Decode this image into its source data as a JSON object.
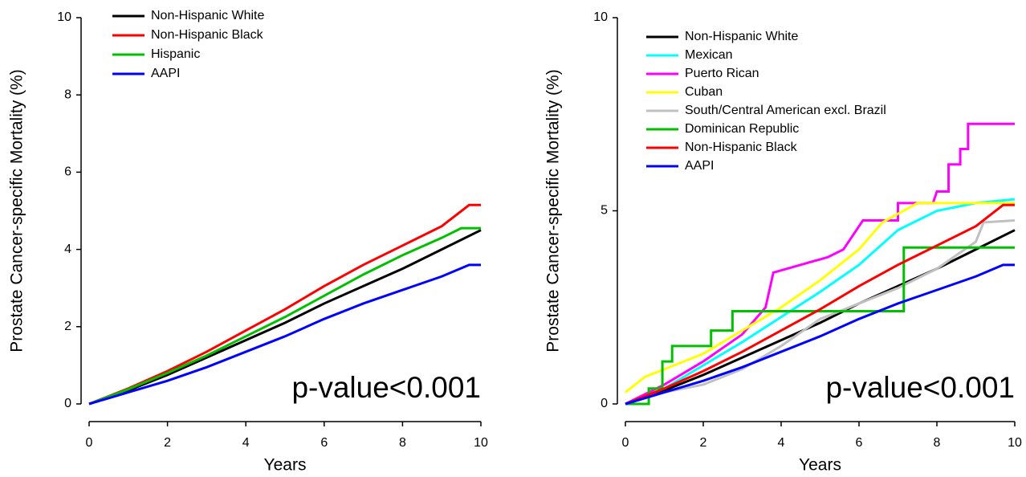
{
  "chart_data": [
    {
      "type": "line",
      "x_label": "Years",
      "y_label": "Prostate Cancer-specific Mortality (%)",
      "annotation": "p-value<0.001",
      "xlim": [
        0,
        10
      ],
      "ylim": [
        0,
        10
      ],
      "xticks": [
        0,
        2,
        4,
        6,
        8,
        10
      ],
      "yticks": [
        0,
        2,
        4,
        6,
        8,
        10
      ],
      "legend": "top-left",
      "series": [
        {
          "name": "Non-Hispanic White",
          "color": "#000000",
          "x": [
            0,
            1,
            2,
            3,
            4,
            5,
            6,
            7,
            8,
            9,
            10
          ],
          "values": [
            0,
            0.35,
            0.75,
            1.2,
            1.65,
            2.1,
            2.6,
            3.05,
            3.5,
            4.0,
            4.5
          ]
        },
        {
          "name": "Non-Hispanic Black",
          "color": "#ff0000",
          "x": [
            0,
            1,
            2,
            3,
            4,
            5,
            6,
            7,
            8,
            9,
            9.7,
            10
          ],
          "values": [
            0,
            0.4,
            0.85,
            1.35,
            1.9,
            2.45,
            3.05,
            3.6,
            4.1,
            4.6,
            5.15,
            5.15
          ]
        },
        {
          "name": "Hispanic",
          "color": "#00c000",
          "x": [
            0,
            1,
            2,
            3,
            4,
            5,
            6,
            7,
            8,
            9,
            9.5,
            10
          ],
          "values": [
            0,
            0.38,
            0.8,
            1.25,
            1.75,
            2.25,
            2.8,
            3.35,
            3.85,
            4.3,
            4.55,
            4.55
          ]
        },
        {
          "name": "AAPI",
          "color": "#0000ff",
          "x": [
            0,
            1,
            2,
            3,
            4,
            5,
            6,
            7,
            8,
            9,
            9.7,
            10
          ],
          "values": [
            0,
            0.3,
            0.6,
            0.95,
            1.35,
            1.75,
            2.2,
            2.6,
            2.95,
            3.3,
            3.6,
            3.6
          ]
        }
      ]
    },
    {
      "type": "line",
      "x_label": "Years",
      "y_label": "Prostate Cancer-specific Mortality (%)",
      "annotation": "p-value<0.001",
      "xlim": [
        0,
        10
      ],
      "ylim": [
        0,
        10
      ],
      "xticks": [
        0,
        2,
        4,
        6,
        8,
        10
      ],
      "yticks": [
        0,
        5,
        10
      ],
      "legend": "top-left",
      "series": [
        {
          "name": "Non-Hispanic White",
          "color": "#000000",
          "x": [
            0,
            1,
            2,
            3,
            4,
            5,
            6,
            7,
            8,
            9,
            10
          ],
          "values": [
            0,
            0.35,
            0.75,
            1.2,
            1.65,
            2.1,
            2.6,
            3.05,
            3.5,
            4.0,
            4.5
          ]
        },
        {
          "name": "Mexican",
          "color": "#00ffff",
          "x": [
            0,
            1,
            2,
            3,
            4,
            5,
            6,
            7,
            8,
            9,
            10
          ],
          "values": [
            0,
            0.4,
            1.0,
            1.6,
            2.25,
            2.9,
            3.6,
            4.5,
            5.0,
            5.2,
            5.3
          ]
        },
        {
          "name": "Puerto Rican",
          "color": "#ff00ff",
          "x": [
            0,
            1,
            2,
            3,
            3.6,
            3.8,
            4.5,
            5.2,
            5.6,
            6.1,
            7.0,
            7.0,
            7.9,
            8.0,
            8.3,
            8.3,
            8.6,
            8.6,
            8.8,
            8.8,
            10
          ],
          "values": [
            0,
            0.5,
            1.1,
            1.8,
            2.5,
            3.4,
            3.6,
            3.8,
            4.0,
            4.75,
            4.75,
            5.2,
            5.2,
            5.5,
            5.5,
            6.2,
            6.2,
            6.6,
            6.6,
            7.25,
            7.25
          ]
        },
        {
          "name": "Cuban",
          "color": "#ffff00",
          "x": [
            0,
            0.5,
            1,
            2,
            3,
            4,
            5,
            6,
            6.6,
            7.5,
            10
          ],
          "values": [
            0.3,
            0.7,
            0.9,
            1.3,
            1.9,
            2.5,
            3.2,
            4.0,
            4.7,
            5.2,
            5.2
          ]
        },
        {
          "name": "South/Central American excl. Brazil",
          "color": "#c0c0c0",
          "x": [
            0,
            1,
            2,
            3,
            4,
            5,
            6,
            7,
            8,
            9,
            9.2,
            10
          ],
          "values": [
            0,
            0.3,
            0.5,
            0.9,
            1.5,
            2.2,
            2.6,
            3.0,
            3.5,
            4.2,
            4.7,
            4.75
          ]
        },
        {
          "name": "Dominican Republic",
          "color": "#00c000",
          "x": [
            0,
            0.6,
            0.6,
            0.95,
            0.95,
            1.2,
            1.2,
            2.2,
            2.2,
            2.75,
            2.75,
            7.15,
            7.15,
            10
          ],
          "values": [
            0,
            0,
            0.4,
            0.4,
            1.1,
            1.1,
            1.5,
            1.5,
            1.9,
            1.9,
            2.4,
            2.4,
            4.05,
            4.05
          ]
        },
        {
          "name": "Non-Hispanic Black",
          "color": "#ff0000",
          "x": [
            0,
            1,
            2,
            3,
            4,
            5,
            6,
            7,
            8,
            9,
            9.7,
            10
          ],
          "values": [
            0,
            0.4,
            0.85,
            1.35,
            1.9,
            2.45,
            3.05,
            3.6,
            4.1,
            4.6,
            5.15,
            5.15
          ]
        },
        {
          "name": "AAPI",
          "color": "#0000ff",
          "x": [
            0,
            1,
            2,
            3,
            4,
            5,
            6,
            7,
            8,
            9,
            9.7,
            10
          ],
          "values": [
            0,
            0.3,
            0.6,
            0.95,
            1.35,
            1.75,
            2.2,
            2.6,
            2.95,
            3.3,
            3.6,
            3.6
          ]
        }
      ]
    }
  ]
}
